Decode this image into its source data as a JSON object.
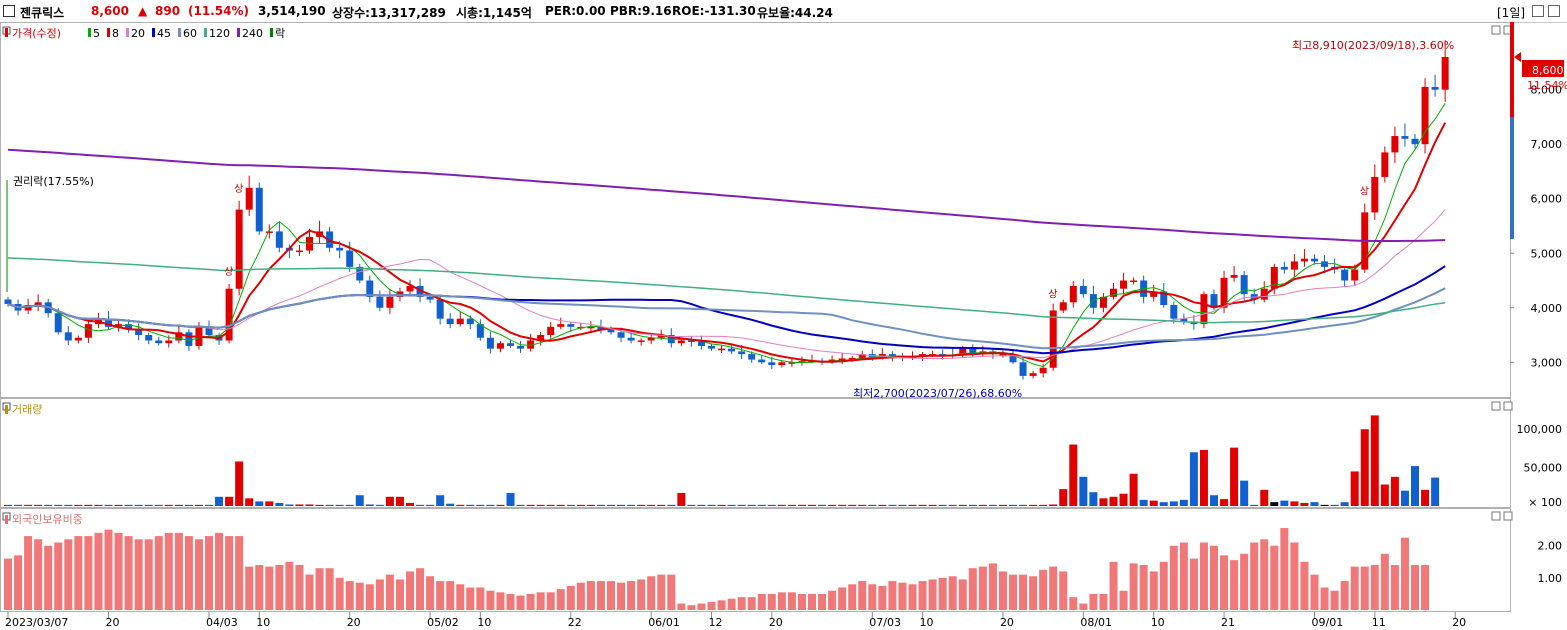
{
  "header": {
    "stock_name": "젠큐릭스",
    "price": "8,600",
    "change_arrow": "▲",
    "change": "890",
    "change_pct": "(11.54%)",
    "volume": "3,514,190",
    "listed_shares": "상장수:13,317,289",
    "market_cap": "시총:1,145억",
    "per": "PER:0.00",
    "pbr": "PBR:9.16",
    "roe": "ROE:-131.30",
    "float_ratio": "유보율:44.24",
    "period": "[1일]",
    "colors": {
      "up": "#e00000",
      "down": "#0000d0"
    }
  },
  "legend": {
    "price_label": "가격(수정)",
    "ma_items": [
      {
        "label": "5",
        "color": "#00b000"
      },
      {
        "label": "8",
        "color": "#e00000"
      },
      {
        "label": "20",
        "color": "#e080c0"
      },
      {
        "label": "45",
        "color": "#0000c0"
      },
      {
        "label": "60",
        "color": "#7090c0"
      },
      {
        "label": "120",
        "color": "#40b080"
      },
      {
        "label": "240",
        "color": "#8020b0"
      },
      {
        "label": "락",
        "color": "#008000"
      }
    ]
  },
  "annotations": {
    "high": "최고8,910(2023/09/18),3.60%",
    "low": "최저2,700(2023/07/26),68.60%",
    "rights": "권리락(17.55%)",
    "limit_up": "상",
    "last_price": "8,600",
    "last_pct": "11.54%"
  },
  "volume_panel": {
    "title": "거래량",
    "ticks": [
      "100,000",
      "50,000",
      "× 100"
    ]
  },
  "foreign_panel": {
    "title": "외국인보유비중",
    "ticks": [
      "2.00",
      "1.00"
    ]
  },
  "chart_data": [
    {
      "type": "candlestick",
      "title": "가격(수정)",
      "y_ticks": [
        "8,000",
        "7,000",
        "6,000",
        "5,000",
        "4,000",
        "3,000"
      ],
      "ylim": [
        2400,
        9150
      ],
      "x_tick_labels": [
        "2023/03/07",
        "20",
        "04/03",
        "10",
        "20",
        "05/02",
        "10",
        "22",
        "06/01",
        "12",
        "20",
        "07/03",
        "10",
        "20",
        "08/01",
        "10",
        "21",
        "09/01",
        "11",
        "20"
      ],
      "x_tick_index": [
        0,
        10,
        20,
        25,
        34,
        42,
        47,
        56,
        64,
        70,
        76,
        86,
        91,
        99,
        107,
        114,
        121,
        130,
        136,
        144
      ],
      "close": [
        4070,
        3950,
        4050,
        4100,
        3900,
        3550,
        3400,
        3450,
        3700,
        3800,
        3650,
        3700,
        3600,
        3500,
        3400,
        3350,
        3400,
        3550,
        3300,
        3650,
        3500,
        3400,
        4350,
        5800,
        6200,
        5400,
        5400,
        5100,
        5050,
        5050,
        5300,
        5400,
        5100,
        5050,
        4750,
        4500,
        4200,
        4000,
        4200,
        4300,
        4400,
        4200,
        4150,
        3800,
        3700,
        3800,
        3700,
        3450,
        3250,
        3350,
        3300,
        3250,
        3400,
        3500,
        3650,
        3700,
        3650,
        3650,
        3650,
        3600,
        3550,
        3450,
        3400,
        3400,
        3450,
        3500,
        3350,
        3400,
        3380,
        3300,
        3250,
        3250,
        3200,
        3150,
        3050,
        3000,
        2950,
        3000,
        3000,
        3020,
        3030,
        3020,
        3050,
        3070,
        3080,
        3150,
        3100,
        3150,
        3100,
        3080,
        3100,
        3150,
        3150,
        3140,
        3130,
        3250,
        3170,
        3200,
        3150,
        3150,
        3000,
        2750,
        2800,
        2900,
        3950,
        4100,
        4400,
        4250,
        4000,
        4200,
        4350,
        4500,
        4500,
        4200,
        4300,
        4050,
        3800,
        3750,
        3700,
        4250,
        4000,
        4550,
        4600,
        4250,
        4150,
        4350,
        4750,
        4700,
        4850,
        4900,
        4850,
        4750,
        4700,
        4500,
        4700,
        5750,
        6400,
        6850,
        7150,
        7100,
        7000,
        8050,
        8000,
        8600
      ],
      "ma_series": [
        "5",
        "8",
        "20",
        "45",
        "60",
        "120",
        "240"
      ]
    },
    {
      "type": "bar",
      "title": "거래량",
      "ylim": [
        0,
        125000
      ],
      "values": [
        1500,
        1500,
        1500,
        1500,
        1500,
        1500,
        1500,
        1500,
        1500,
        1500,
        1500,
        1500,
        1500,
        1500,
        1500,
        1500,
        1500,
        1500,
        1500,
        1500,
        1500,
        12000,
        12000,
        58000,
        10000,
        6000,
        6000,
        4000,
        2000,
        2000,
        2000,
        1500,
        1500,
        1500,
        1500,
        14000,
        2000,
        1500,
        12000,
        12000,
        4000,
        1500,
        1500,
        14000,
        3000,
        1500,
        1500,
        1500,
        1500,
        1500,
        17000,
        1500,
        1500,
        1500,
        1500,
        1500,
        1500,
        1500,
        1500,
        1500,
        1500,
        1500,
        1500,
        1500,
        1500,
        1500,
        1500,
        17000,
        1500,
        1500,
        1500,
        1500,
        1500,
        1500,
        1500,
        1500,
        1500,
        1500,
        1500,
        1500,
        1500,
        1500,
        1500,
        1500,
        1500,
        1500,
        1500,
        1500,
        1500,
        1500,
        1500,
        1500,
        1500,
        1500,
        1500,
        1500,
        1500,
        1500,
        1500,
        1500,
        1500,
        1500,
        1500,
        1500,
        2000,
        22000,
        80000,
        38000,
        18000,
        10000,
        12000,
        16000,
        42000,
        8000,
        7000,
        5000,
        6000,
        8000,
        70000,
        73000,
        14000,
        9000,
        76000,
        33000,
        1500,
        21000,
        5000,
        7000,
        6000,
        4000,
        5000,
        1500,
        1500,
        5000,
        45000,
        100000,
        118000,
        28000,
        38000,
        20000,
        52000,
        21000,
        37000
      ]
    },
    {
      "type": "bar",
      "title": "외국인보유비중",
      "ylim": [
        0,
        2.8
      ],
      "values": [
        1.6,
        1.7,
        2.3,
        2.2,
        2.0,
        2.1,
        2.2,
        2.3,
        2.3,
        2.4,
        2.5,
        2.4,
        2.3,
        2.2,
        2.2,
        2.3,
        2.4,
        2.4,
        2.3,
        2.2,
        2.3,
        2.4,
        2.3,
        2.3,
        1.35,
        1.4,
        1.35,
        1.4,
        1.5,
        1.4,
        1.1,
        1.3,
        1.3,
        1.0,
        0.9,
        0.85,
        0.8,
        0.95,
        1.1,
        0.95,
        1.2,
        1.3,
        1.05,
        0.9,
        0.9,
        0.8,
        0.7,
        0.7,
        0.6,
        0.55,
        0.5,
        0.45,
        0.5,
        0.55,
        0.55,
        0.65,
        0.75,
        0.85,
        0.9,
        0.9,
        0.9,
        0.85,
        0.9,
        0.95,
        1.05,
        1.1,
        1.1,
        0.2,
        0.15,
        0.2,
        0.25,
        0.3,
        0.35,
        0.4,
        0.4,
        0.5,
        0.5,
        0.55,
        0.55,
        0.5,
        0.5,
        0.5,
        0.6,
        0.7,
        0.8,
        0.9,
        0.8,
        0.75,
        0.9,
        0.85,
        0.8,
        0.9,
        0.95,
        1.0,
        1.05,
        0.95,
        1.3,
        1.35,
        1.45,
        1.2,
        1.1,
        1.1,
        1.05,
        1.25,
        1.35,
        1.2,
        0.4,
        0.2,
        0.5,
        0.5,
        1.5,
        0.6,
        1.45,
        1.4,
        1.2,
        1.5,
        2.0,
        2.1,
        1.6,
        2.1,
        2.0,
        1.7,
        1.55,
        1.75,
        2.1,
        2.2,
        2.0,
        2.55,
        2.1,
        1.5,
        1.1,
        0.7,
        0.6,
        0.9,
        1.35,
        1.35,
        1.4,
        1.75,
        1.4,
        2.25,
        1.4,
        1.4
      ]
    }
  ]
}
